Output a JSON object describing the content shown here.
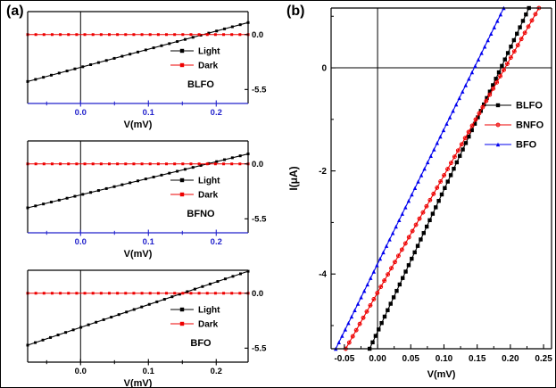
{
  "figure": {
    "panel_a_label": "(a)",
    "panel_b_label": "(b)",
    "background": "#ffffff"
  },
  "chart_data": [
    {
      "id": "a1",
      "type": "line",
      "sample": "BLFO",
      "xlabel": "V(mV)",
      "xlim": [
        -0.078,
        0.247
      ],
      "ylim": [
        -6.9,
        2.3
      ],
      "zero_vline": true,
      "axis_bottom_color": "#2222cc",
      "xticks": {
        "values": [
          0.0,
          0.1,
          0.2
        ],
        "labels": [
          "0.0",
          "0.1",
          "0.2"
        ],
        "label_color": "#2222cc"
      },
      "minor_xticks": [
        -0.05,
        0.05,
        0.15
      ],
      "yticks": {
        "values": [
          0.0,
          -5.5
        ],
        "labels": [
          "0.0",
          "-5.5"
        ],
        "side": "right",
        "label_color": "#000000"
      },
      "series": [
        {
          "name": "Light",
          "color": "#000000",
          "marker": "square",
          "x": [
            -0.078,
            0.247
          ],
          "y": [
            -4.7,
            1.2
          ]
        },
        {
          "name": "Dark",
          "color": "#ee0000",
          "marker": "square",
          "x": [
            -0.078,
            0.247
          ],
          "y": [
            0.0,
            0.0
          ]
        }
      ],
      "legend": [
        {
          "label": "Light",
          "color": "#000000",
          "marker": "square"
        },
        {
          "label": "Dark",
          "color": "#ee0000",
          "marker": "square"
        }
      ]
    },
    {
      "id": "a2",
      "type": "line",
      "sample": "BFNO",
      "xlabel": "V(mV)",
      "xlim": [
        -0.078,
        0.247
      ],
      "ylim": [
        -6.9,
        2.3
      ],
      "zero_vline": true,
      "axis_bottom_color": "#2222cc",
      "xticks": {
        "values": [
          0.0,
          0.1,
          0.2
        ],
        "labels": [
          "0.0",
          "0.1",
          "0.2"
        ],
        "label_color": "#2222cc"
      },
      "minor_xticks": [
        -0.05,
        0.05,
        0.15
      ],
      "yticks": {
        "values": [
          0.0,
          -5.5
        ],
        "labels": [
          "0.0",
          "-5.5"
        ],
        "side": "right",
        "label_color": "#000000"
      },
      "series": [
        {
          "name": "Light",
          "color": "#000000",
          "marker": "square",
          "x": [
            -0.078,
            0.247
          ],
          "y": [
            -4.4,
            1.0
          ]
        },
        {
          "name": "Dark",
          "color": "#ee0000",
          "marker": "square",
          "x": [
            -0.078,
            0.247
          ],
          "y": [
            0.0,
            0.0
          ]
        }
      ],
      "legend": [
        {
          "label": "Light",
          "color": "#000000",
          "marker": "square"
        },
        {
          "label": "Dark",
          "color": "#ee0000",
          "marker": "square"
        }
      ]
    },
    {
      "id": "a3",
      "type": "line",
      "sample": "BFO",
      "xlabel": "V(mV)",
      "xlim": [
        -0.078,
        0.247
      ],
      "ylim": [
        -6.9,
        2.3
      ],
      "zero_vline": true,
      "axis_bottom_color": "#000000",
      "xticks": {
        "values": [
          0.0,
          0.1,
          0.2
        ],
        "labels": [
          "0.0",
          "0.1",
          "0.2"
        ],
        "label_color": "#000000"
      },
      "minor_xticks": [
        -0.05,
        0.05,
        0.15
      ],
      "yticks": {
        "values": [
          0.0,
          -5.5
        ],
        "labels": [
          "0.0",
          "-5.5"
        ],
        "side": "right",
        "label_color": "#000000"
      },
      "series": [
        {
          "name": "Light",
          "color": "#000000",
          "marker": "square",
          "x": [
            -0.078,
            0.247
          ],
          "y": [
            -5.2,
            2.2
          ]
        },
        {
          "name": "Dark",
          "color": "#ee0000",
          "marker": "square",
          "x": [
            -0.078,
            0.247
          ],
          "y": [
            0.0,
            0.0
          ]
        }
      ],
      "legend": [
        {
          "label": "Light",
          "color": "#000000",
          "marker": "square"
        },
        {
          "label": "Dark",
          "color": "#ee0000",
          "marker": "square"
        }
      ]
    },
    {
      "id": "b",
      "type": "line",
      "xlabel": "V(mV)",
      "ylabel": "I(μA)",
      "xlim": [
        -0.07,
        0.262
      ],
      "ylim": [
        -5.45,
        1.16
      ],
      "zero_vline": true,
      "zero_hline": true,
      "axis_bottom_color": "#000000",
      "xticks": {
        "values": [
          -0.05,
          0.0,
          0.05,
          0.1,
          0.15,
          0.2,
          0.25
        ],
        "labels": [
          "-0.05",
          "0.00",
          "0.05",
          "0.10",
          "0.15",
          "0.20",
          "0.25"
        ],
        "label_color": "#000000"
      },
      "minor_xticks": [
        -0.025,
        0.025,
        0.075,
        0.125,
        0.175,
        0.225
      ],
      "yticks": {
        "values": [
          0,
          -2,
          -4
        ],
        "labels": [
          "0",
          "-2",
          "-4"
        ],
        "side": "left",
        "label_color": "#000000"
      },
      "minor_yticks": [
        1,
        -1,
        -3,
        -5
      ],
      "series": [
        {
          "name": "BLFO",
          "color": "#000000",
          "marker": "square",
          "x": [
            -0.012,
            0.228
          ],
          "y": [
            -5.45,
            1.16
          ]
        },
        {
          "name": "BNFO",
          "color": "#ee0000",
          "marker": "circle-plus",
          "x": [
            -0.048,
            0.243
          ],
          "y": [
            -5.45,
            1.16
          ]
        },
        {
          "name": "BFO",
          "color": "#0000ee",
          "marker": "triangle",
          "x": [
            -0.063,
            0.19
          ],
          "y": [
            -5.45,
            1.16
          ]
        }
      ],
      "legend": [
        {
          "label": "BLFO",
          "color": "#000000",
          "marker": "square"
        },
        {
          "label": "BNFO",
          "color": "#ee0000",
          "marker": "circle-plus"
        },
        {
          "label": "BFO",
          "color": "#0000ee",
          "marker": "triangle"
        }
      ]
    }
  ]
}
